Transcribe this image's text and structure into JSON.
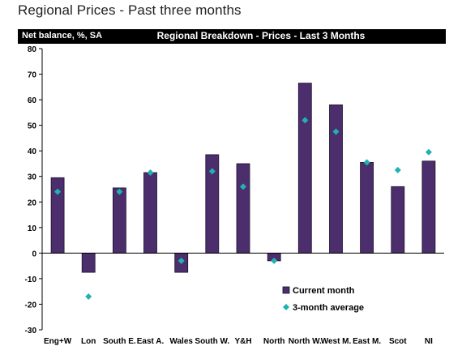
{
  "page": {
    "title": "Regional Prices - Past three months"
  },
  "header": {
    "left_label": "Net balance, %, SA",
    "center_title": "Regional Breakdown - Prices - Last 3 Months"
  },
  "chart_data": {
    "type": "bar",
    "title": "Regional Breakdown - Prices - Last 3 Months",
    "ylabel": "Net balance, %, SA",
    "ylim": [
      -30,
      80
    ],
    "yticks": [
      80,
      70,
      60,
      50,
      40,
      30,
      20,
      10,
      0,
      -10,
      -20,
      -30
    ],
    "grid": false,
    "legend_position": "bottom-right",
    "categories": [
      "Eng+W",
      "Lon",
      "South E.",
      "East A.",
      "Wales",
      "South W.",
      "Y&H",
      "North",
      "North W.",
      "West M.",
      "East M.",
      "Scot",
      "NI"
    ],
    "series": [
      {
        "name": "Current month",
        "kind": "bar",
        "color": "#4b2e6b",
        "values": [
          29.5,
          -7.5,
          25.5,
          31.5,
          -7.5,
          38.5,
          35,
          -3,
          66.5,
          58,
          35.5,
          26,
          36
        ]
      },
      {
        "name": "3-month average",
        "kind": "marker",
        "color": "#20b2b2",
        "values": [
          24,
          -17,
          24,
          31.5,
          -3,
          32,
          26,
          -3,
          52,
          47.5,
          35.5,
          32.5,
          39.5
        ]
      }
    ]
  }
}
